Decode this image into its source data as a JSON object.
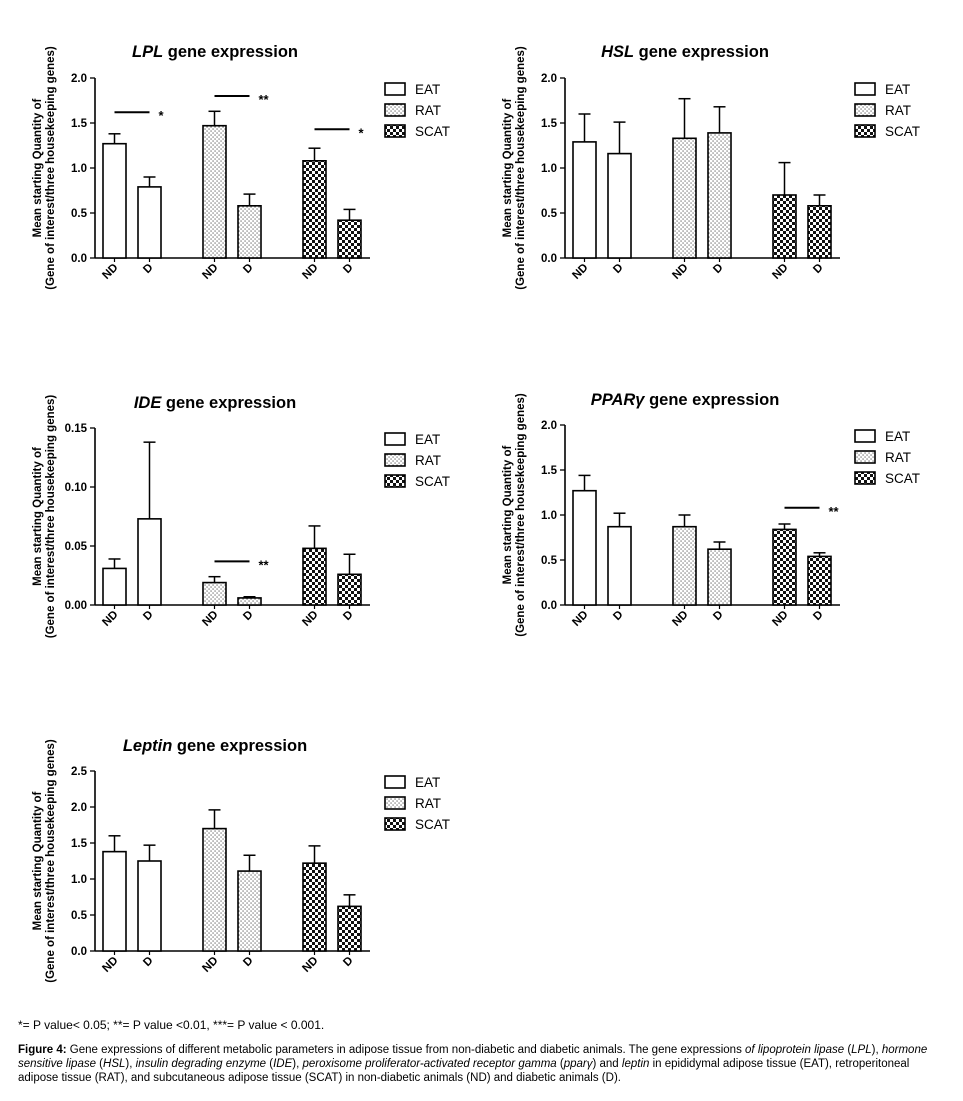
{
  "chart_data": [
    {
      "type": "bar",
      "title_italic": "LPL",
      "title_rest": " gene expression",
      "ylabel_line1": "Mean starting Quantity of",
      "ylabel_line2": "(Gene of interest/three housekeeping genes)",
      "ylim": [
        0,
        2.0
      ],
      "yticks": [
        "0.0",
        "0.5",
        "1.0",
        "1.5",
        "2.0"
      ],
      "categories": [
        "ND",
        "D",
        "ND",
        "D",
        "ND",
        "D"
      ],
      "tissues": [
        "EAT",
        "EAT",
        "RAT",
        "RAT",
        "SCAT",
        "SCAT"
      ],
      "values": [
        1.27,
        0.79,
        1.47,
        0.58,
        1.08,
        0.42
      ],
      "errors": [
        0.11,
        0.11,
        0.16,
        0.13,
        0.14,
        0.12
      ],
      "significance": [
        {
          "pair": [
            0,
            1
          ],
          "label": "*",
          "level": 1.62
        },
        {
          "pair": [
            2,
            3
          ],
          "label": "**",
          "level": 1.8
        },
        {
          "pair": [
            4,
            5
          ],
          "label": "*",
          "level": 1.43
        }
      ],
      "legend": [
        "EAT",
        "RAT",
        "SCAT"
      ]
    },
    {
      "type": "bar",
      "title_italic": "HSL",
      "title_rest": " gene expression",
      "ylabel_line1": "Mean starting Quantity of",
      "ylabel_line2": "(Gene of interest/three housekeeping genes)",
      "ylim": [
        0,
        2.0
      ],
      "yticks": [
        "0.0",
        "0.5",
        "1.0",
        "1.5",
        "2.0"
      ],
      "categories": [
        "ND",
        "D",
        "ND",
        "D",
        "ND",
        "D"
      ],
      "tissues": [
        "EAT",
        "EAT",
        "RAT",
        "RAT",
        "SCAT",
        "SCAT"
      ],
      "values": [
        1.29,
        1.16,
        1.33,
        1.39,
        0.7,
        0.58
      ],
      "errors": [
        0.31,
        0.35,
        0.44,
        0.29,
        0.36,
        0.12
      ],
      "significance": [],
      "legend": [
        "EAT",
        "RAT",
        "SCAT"
      ]
    },
    {
      "type": "bar",
      "title_italic": "IDE",
      "title_rest": " gene expression",
      "ylabel_line1": "Mean starting Quantity of",
      "ylabel_line2": "(Gene of interest/three housekeeping genes)",
      "ylim": [
        0,
        0.15
      ],
      "yticks": [
        "0.00",
        "0.05",
        "0.10",
        "0.15"
      ],
      "categories": [
        "ND",
        "D",
        "ND",
        "D",
        "ND",
        "D"
      ],
      "tissues": [
        "EAT",
        "EAT",
        "RAT",
        "RAT",
        "SCAT",
        "SCAT"
      ],
      "values": [
        0.031,
        0.073,
        0.019,
        0.006,
        0.048,
        0.026
      ],
      "errors": [
        0.008,
        0.065,
        0.005,
        0.001,
        0.019,
        0.017
      ],
      "significance": [
        {
          "pair": [
            2,
            3
          ],
          "label": "**",
          "level": 0.037
        }
      ],
      "legend": [
        "EAT",
        "RAT",
        "SCAT"
      ]
    },
    {
      "type": "bar",
      "title_italic": "PPARγ",
      "title_rest": " gene expression",
      "ylabel_line1": "Mean starting Quantity of",
      "ylabel_line2": "(Gene of interest/three housekeeping genes)",
      "ylim": [
        0,
        2.0
      ],
      "yticks": [
        "0.0",
        "0.5",
        "1.0",
        "1.5",
        "2.0"
      ],
      "categories": [
        "ND",
        "D",
        "ND",
        "D",
        "ND",
        "D"
      ],
      "tissues": [
        "EAT",
        "EAT",
        "RAT",
        "RAT",
        "SCAT",
        "SCAT"
      ],
      "values": [
        1.27,
        0.87,
        0.87,
        0.62,
        0.84,
        0.54
      ],
      "errors": [
        0.17,
        0.15,
        0.13,
        0.08,
        0.06,
        0.04
      ],
      "significance": [
        {
          "pair": [
            4,
            5
          ],
          "label": "**",
          "level": 1.08
        }
      ],
      "legend": [
        "EAT",
        "RAT",
        "SCAT"
      ]
    },
    {
      "type": "bar",
      "title_italic": "Leptin",
      "title_rest": " gene expression",
      "ylabel_line1": "Mean starting Quantity of",
      "ylabel_line2": "(Gene of interest/three housekeeping genes)",
      "ylim": [
        0,
        2.5
      ],
      "yticks": [
        "0.0",
        "0.5",
        "1.0",
        "1.5",
        "2.0",
        "2.5"
      ],
      "categories": [
        "ND",
        "D",
        "ND",
        "D",
        "ND",
        "D"
      ],
      "tissues": [
        "EAT",
        "EAT",
        "RAT",
        "RAT",
        "SCAT",
        "SCAT"
      ],
      "values": [
        1.38,
        1.25,
        1.7,
        1.11,
        1.22,
        0.62
      ],
      "errors": [
        0.22,
        0.22,
        0.26,
        0.22,
        0.24,
        0.16
      ],
      "significance": [],
      "legend": [
        "EAT",
        "RAT",
        "SCAT"
      ]
    }
  ],
  "footnote": "*= P value< 0.05; **= P value <0.01, ***= P value < 0.001.",
  "caption": {
    "label": "Figure 4:",
    "text_html": " Gene expressions of different metabolic parameters in adipose tissue from non-diabetic and diabetic animals. The gene expressions <i>of lipoprotein lipase</i> (<i>LPL</i>), <i>hormone sensitive lipase</i> (<i>HSL</i>), <i>insulin degrading enzyme</i> (<i>IDE</i>), <i>peroxisome proliferator-activated receptor gamma</i> (<i>pparγ</i>) and <i>leptin</i> in epididymal adipose tissue (EAT), retroperitoneal adipose tissue (RAT), and subcutaneous adipose tissue (SCAT) in non-diabetic animals (ND) and diabetic animals (D)."
  }
}
